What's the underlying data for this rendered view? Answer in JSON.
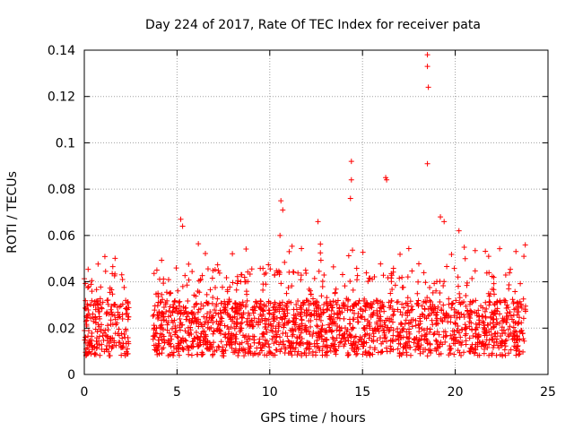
{
  "chart_data": {
    "type": "scatter",
    "title": "Day 224 of 2017, Rate Of TEC Index for receiver pata",
    "xlabel": "GPS time / hours",
    "ylabel": "ROTI / TECUs",
    "xlim": [
      0,
      25
    ],
    "ylim": [
      0,
      0.14
    ],
    "xticks": [
      0,
      5,
      10,
      15,
      20,
      25
    ],
    "yticks": [
      0,
      0.02,
      0.04,
      0.06,
      0.08,
      0.1,
      0.12,
      0.14
    ],
    "xtick_labels": [
      "0",
      "5",
      "10",
      "15",
      "20",
      "25"
    ],
    "ytick_labels": [
      "0",
      "0.02",
      "0.04",
      "0.06",
      "0.08",
      "0.1",
      "0.12",
      "0.14"
    ],
    "grid": true,
    "marker": "+",
    "color": "#ff0000",
    "segments": [
      {
        "x_start": 0.0,
        "x_end": 2.4
      },
      {
        "x_start": 3.7,
        "x_end": 23.8
      }
    ],
    "typical_range": [
      0.008,
      0.032
    ],
    "notable_points": [
      {
        "x": 18.5,
        "y": 0.138
      },
      {
        "x": 18.5,
        "y": 0.133
      },
      {
        "x": 18.55,
        "y": 0.124
      },
      {
        "x": 18.5,
        "y": 0.091
      },
      {
        "x": 14.4,
        "y": 0.092
      },
      {
        "x": 14.4,
        "y": 0.084
      },
      {
        "x": 14.35,
        "y": 0.076
      },
      {
        "x": 16.25,
        "y": 0.085
      },
      {
        "x": 16.3,
        "y": 0.084
      },
      {
        "x": 10.6,
        "y": 0.075
      },
      {
        "x": 10.7,
        "y": 0.071
      },
      {
        "x": 10.55,
        "y": 0.06
      },
      {
        "x": 5.2,
        "y": 0.067
      },
      {
        "x": 5.3,
        "y": 0.064
      },
      {
        "x": 12.6,
        "y": 0.066
      },
      {
        "x": 19.2,
        "y": 0.068
      },
      {
        "x": 19.4,
        "y": 0.066
      },
      {
        "x": 20.2,
        "y": 0.062
      },
      {
        "x": 23.7,
        "y": 0.051
      },
      {
        "x": 21.8,
        "y": 0.051
      }
    ]
  }
}
